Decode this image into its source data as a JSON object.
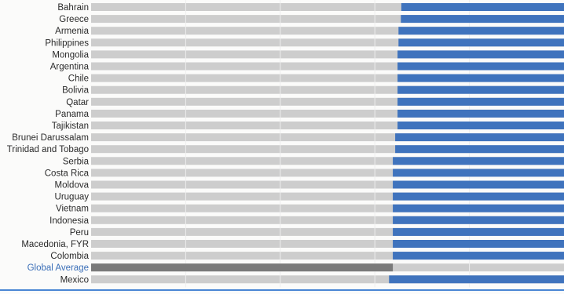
{
  "chart_data": {
    "type": "bar",
    "orientation": "horizontal",
    "categories": [
      "Bahrain",
      "Greece",
      "Armenia",
      "Philippines",
      "Mongolia",
      "Argentina",
      "Chile",
      "Bolivia",
      "Qatar",
      "Panama",
      "Tajikistan",
      "Brunei Darussalam",
      "Trinidad and Tobago",
      "Serbia",
      "Costa Rica",
      "Moldova",
      "Uruguay",
      "Vietnam",
      "Indonesia",
      "Peru",
      "Macedonia, FYR",
      "Colombia",
      "Global Average",
      "Mexico"
    ],
    "values": [
      0.656,
      0.655,
      0.65,
      0.65,
      0.648,
      0.648,
      0.648,
      0.648,
      0.648,
      0.648,
      0.648,
      0.643,
      0.643,
      0.638,
      0.638,
      0.638,
      0.638,
      0.638,
      0.638,
      0.638,
      0.638,
      0.638,
      0.638,
      0.63
    ],
    "highlight_category": "Global Average",
    "xlim": [
      0,
      1
    ],
    "gridlines": true,
    "colors": {
      "bar": "#3f73bd",
      "highlight_bar": "#7a7a7a",
      "track": "#cdcdcd",
      "label": "#2a2a2a",
      "highlight_label": "#3b6fb8"
    }
  }
}
